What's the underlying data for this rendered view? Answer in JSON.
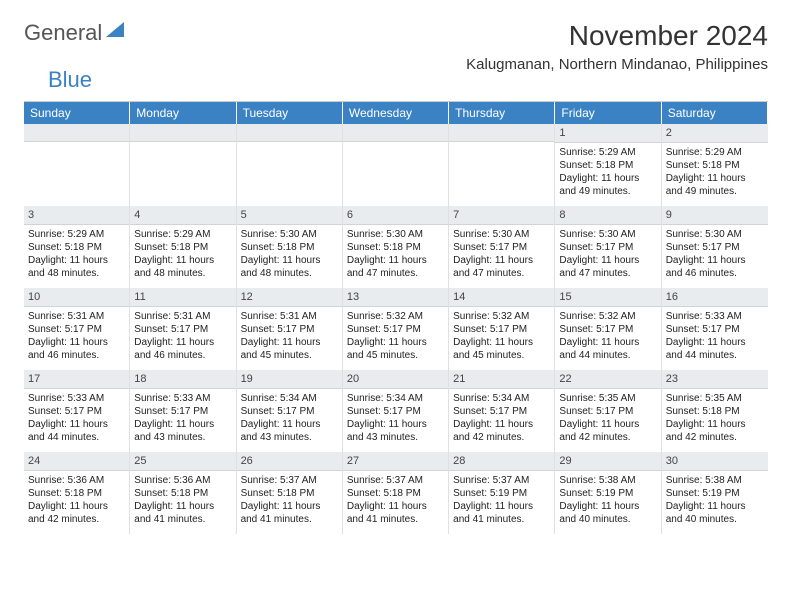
{
  "logo": {
    "word1": "General",
    "word2": "Blue"
  },
  "title": "November 2024",
  "subtitle": "Kalugmanan, Northern Mindanao, Philippines",
  "colors": {
    "header_bg": "#3b82c4",
    "header_text": "#ffffff",
    "daynum_bg": "#e8ecef",
    "cell_border": "#e0e0e0"
  },
  "weekdays": [
    "Sunday",
    "Monday",
    "Tuesday",
    "Wednesday",
    "Thursday",
    "Friday",
    "Saturday"
  ],
  "leading_blanks": 5,
  "days": [
    {
      "n": 1,
      "sunrise": "5:29 AM",
      "sunset": "5:18 PM",
      "daylight": "11 hours and 49 minutes."
    },
    {
      "n": 2,
      "sunrise": "5:29 AM",
      "sunset": "5:18 PM",
      "daylight": "11 hours and 49 minutes."
    },
    {
      "n": 3,
      "sunrise": "5:29 AM",
      "sunset": "5:18 PM",
      "daylight": "11 hours and 48 minutes."
    },
    {
      "n": 4,
      "sunrise": "5:29 AM",
      "sunset": "5:18 PM",
      "daylight": "11 hours and 48 minutes."
    },
    {
      "n": 5,
      "sunrise": "5:30 AM",
      "sunset": "5:18 PM",
      "daylight": "11 hours and 48 minutes."
    },
    {
      "n": 6,
      "sunrise": "5:30 AM",
      "sunset": "5:18 PM",
      "daylight": "11 hours and 47 minutes."
    },
    {
      "n": 7,
      "sunrise": "5:30 AM",
      "sunset": "5:17 PM",
      "daylight": "11 hours and 47 minutes."
    },
    {
      "n": 8,
      "sunrise": "5:30 AM",
      "sunset": "5:17 PM",
      "daylight": "11 hours and 47 minutes."
    },
    {
      "n": 9,
      "sunrise": "5:30 AM",
      "sunset": "5:17 PM",
      "daylight": "11 hours and 46 minutes."
    },
    {
      "n": 10,
      "sunrise": "5:31 AM",
      "sunset": "5:17 PM",
      "daylight": "11 hours and 46 minutes."
    },
    {
      "n": 11,
      "sunrise": "5:31 AM",
      "sunset": "5:17 PM",
      "daylight": "11 hours and 46 minutes."
    },
    {
      "n": 12,
      "sunrise": "5:31 AM",
      "sunset": "5:17 PM",
      "daylight": "11 hours and 45 minutes."
    },
    {
      "n": 13,
      "sunrise": "5:32 AM",
      "sunset": "5:17 PM",
      "daylight": "11 hours and 45 minutes."
    },
    {
      "n": 14,
      "sunrise": "5:32 AM",
      "sunset": "5:17 PM",
      "daylight": "11 hours and 45 minutes."
    },
    {
      "n": 15,
      "sunrise": "5:32 AM",
      "sunset": "5:17 PM",
      "daylight": "11 hours and 44 minutes."
    },
    {
      "n": 16,
      "sunrise": "5:33 AM",
      "sunset": "5:17 PM",
      "daylight": "11 hours and 44 minutes."
    },
    {
      "n": 17,
      "sunrise": "5:33 AM",
      "sunset": "5:17 PM",
      "daylight": "11 hours and 44 minutes."
    },
    {
      "n": 18,
      "sunrise": "5:33 AM",
      "sunset": "5:17 PM",
      "daylight": "11 hours and 43 minutes."
    },
    {
      "n": 19,
      "sunrise": "5:34 AM",
      "sunset": "5:17 PM",
      "daylight": "11 hours and 43 minutes."
    },
    {
      "n": 20,
      "sunrise": "5:34 AM",
      "sunset": "5:17 PM",
      "daylight": "11 hours and 43 minutes."
    },
    {
      "n": 21,
      "sunrise": "5:34 AM",
      "sunset": "5:17 PM",
      "daylight": "11 hours and 42 minutes."
    },
    {
      "n": 22,
      "sunrise": "5:35 AM",
      "sunset": "5:17 PM",
      "daylight": "11 hours and 42 minutes."
    },
    {
      "n": 23,
      "sunrise": "5:35 AM",
      "sunset": "5:18 PM",
      "daylight": "11 hours and 42 minutes."
    },
    {
      "n": 24,
      "sunrise": "5:36 AM",
      "sunset": "5:18 PM",
      "daylight": "11 hours and 42 minutes."
    },
    {
      "n": 25,
      "sunrise": "5:36 AM",
      "sunset": "5:18 PM",
      "daylight": "11 hours and 41 minutes."
    },
    {
      "n": 26,
      "sunrise": "5:37 AM",
      "sunset": "5:18 PM",
      "daylight": "11 hours and 41 minutes."
    },
    {
      "n": 27,
      "sunrise": "5:37 AM",
      "sunset": "5:18 PM",
      "daylight": "11 hours and 41 minutes."
    },
    {
      "n": 28,
      "sunrise": "5:37 AM",
      "sunset": "5:19 PM",
      "daylight": "11 hours and 41 minutes."
    },
    {
      "n": 29,
      "sunrise": "5:38 AM",
      "sunset": "5:19 PM",
      "daylight": "11 hours and 40 minutes."
    },
    {
      "n": 30,
      "sunrise": "5:38 AM",
      "sunset": "5:19 PM",
      "daylight": "11 hours and 40 minutes."
    }
  ],
  "labels": {
    "sunrise": "Sunrise:",
    "sunset": "Sunset:",
    "daylight": "Daylight:"
  }
}
